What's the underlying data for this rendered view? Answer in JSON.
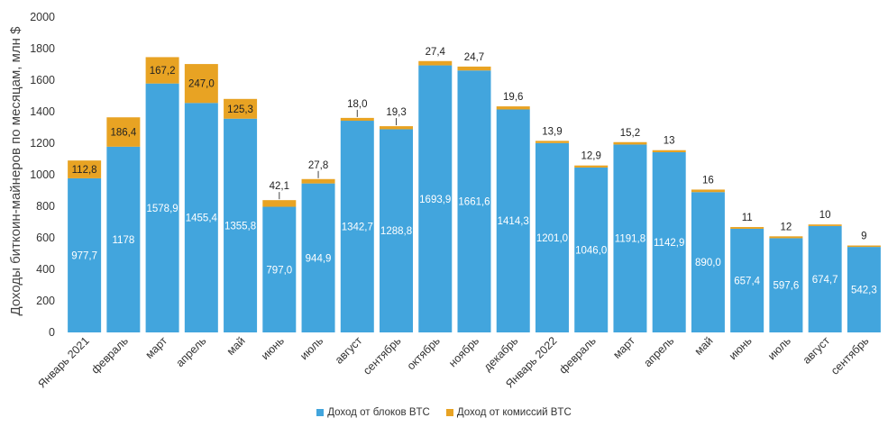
{
  "chart_data": {
    "type": "bar",
    "stacked": true,
    "title": "",
    "ylabel": "Доходы биткоин-майнеров по месяцам, млн $",
    "xlabel": "",
    "ylim": [
      0,
      2000
    ],
    "yticks": [
      "0",
      "200",
      "400",
      "600",
      "800",
      "1000",
      "1200",
      "1400",
      "1600",
      "1800",
      "2000"
    ],
    "ytick_values": [
      0,
      200,
      400,
      600,
      800,
      1000,
      1200,
      1400,
      1600,
      1800,
      2000
    ],
    "categories": [
      "Январь 2021",
      "февраль",
      "март",
      "апрель",
      "май",
      "июнь",
      "июль",
      "август",
      "сентябрь",
      "октябрь",
      "ноябрь",
      "декабрь",
      "Январь 2022",
      "февраль",
      "март",
      "апрель",
      "май",
      "июнь",
      "июль",
      "август",
      "сентябрь"
    ],
    "series": [
      {
        "name": "Доход от блоков BTC",
        "color": "#42a5dd",
        "values": [
          977.7,
          1178,
          1578.9,
          1455.4,
          1355.8,
          797.0,
          944.9,
          1342.7,
          1288.8,
          1693.9,
          1661.6,
          1414.3,
          1201.0,
          1046.0,
          1191.8,
          1142.9,
          890.0,
          657.4,
          597.6,
          674.7,
          542.3
        ],
        "labels": [
          "977,7",
          "1178",
          "1578,9",
          "1455,4",
          "1355,8",
          "797,0",
          "944,9",
          "1342,7",
          "1288,8",
          "1693,9",
          "1661,6",
          "1414,3",
          "1201,0",
          "1046,0",
          "1191,8",
          "1142,9",
          "890,0",
          "657,4",
          "597,6",
          "674,7",
          "542,3"
        ]
      },
      {
        "name": "Доход от комиссий BTC",
        "color": "#e8a323",
        "values": [
          112.8,
          186.4,
          167.2,
          247.0,
          125.3,
          42.1,
          27.8,
          18.0,
          19.3,
          27.4,
          24.7,
          19.6,
          13.9,
          12.9,
          15.2,
          13,
          16,
          11,
          12,
          10,
          9
        ],
        "labels": [
          "112,8",
          "186,4",
          "167,2",
          "247,0",
          "125,3",
          "42,1",
          "27,8",
          "18,0",
          "19,3",
          "27,4",
          "24,7",
          "19,6",
          "13,9",
          "12,9",
          "15,2",
          "13",
          "16",
          "11",
          "12",
          "10",
          "9"
        ]
      }
    ],
    "legend_position": "bottom-center"
  }
}
